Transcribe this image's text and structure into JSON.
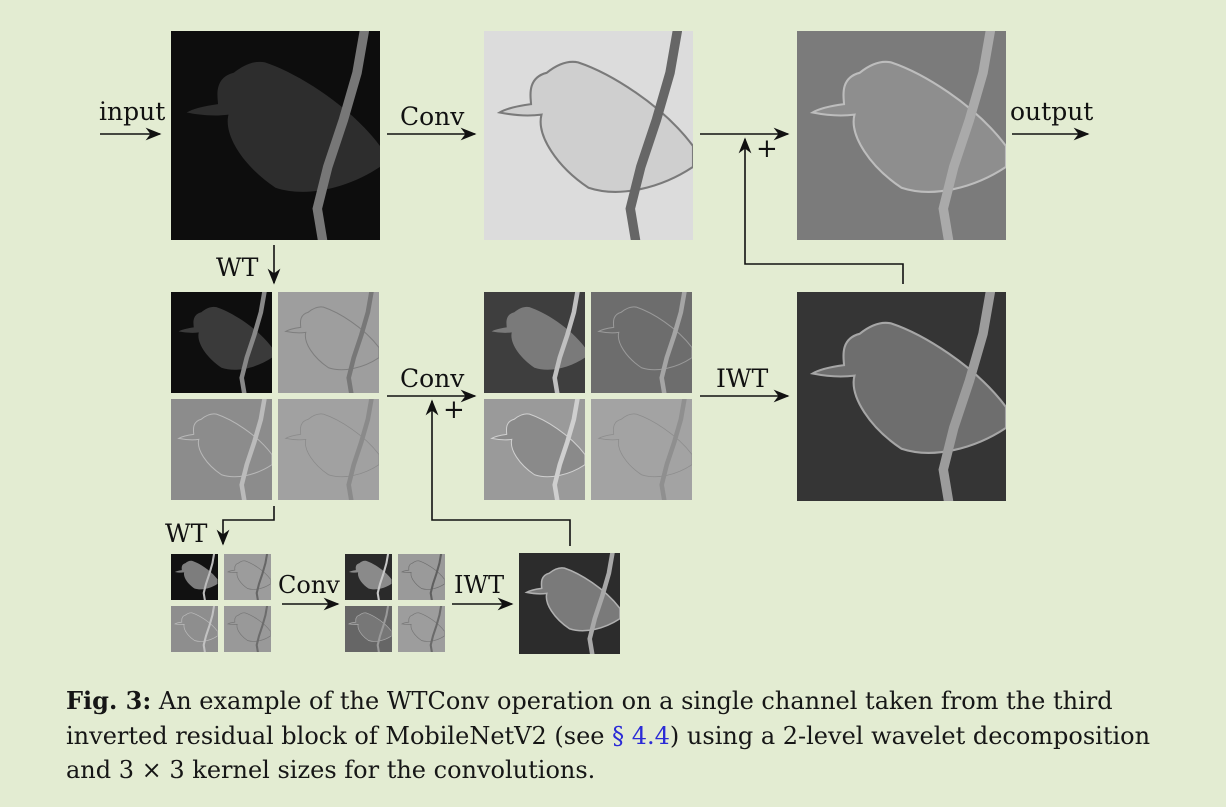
{
  "labels": {
    "input": "input",
    "output": "output",
    "conv": "Conv",
    "wt": "WT",
    "iwt": "IWT",
    "plus": "+"
  },
  "caption": {
    "prefix": "Fig. 3:",
    "text_a": "An example of the WTConv operation on a single channel taken from the third inverted residual block of MobileNetV2 (see",
    "link": "§ 4.4",
    "text_b": ") using a 2-level wavelet decomposition and 3 × 3 kernel sizes for the convolutions."
  },
  "colors": {
    "background": "#e3ecd2",
    "link": "#2b2bd6"
  }
}
